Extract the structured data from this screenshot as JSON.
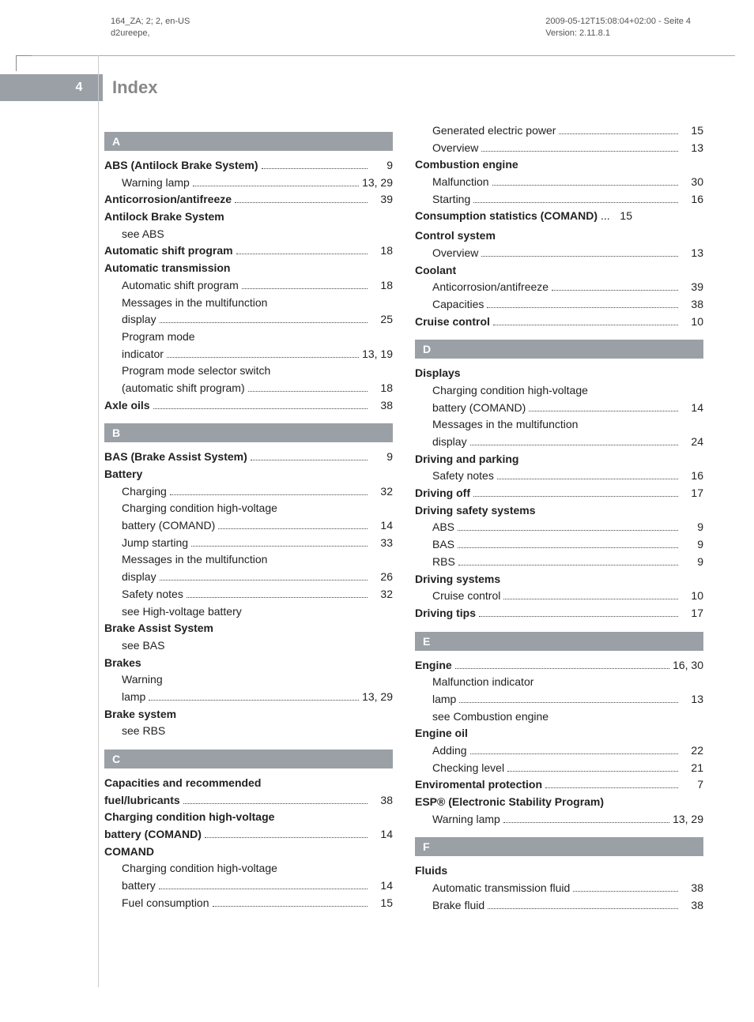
{
  "meta": {
    "topLeft1": "164_ZA; 2; 2, en-US",
    "topLeft2": "d2ureepe,",
    "topRight1": "2009-05-12T15:08:04+02:00 - Seite 4",
    "topRight2": "Version: 2.11.8.1",
    "pageNumber": "4",
    "pageTitle": "Index"
  },
  "styling": {
    "sectionHeaderBg": "#9aa0a6",
    "sectionHeaderColor": "#ffffff",
    "textColor": "#222222",
    "metaColor": "#555555",
    "fontSize": 14,
    "boldWeight": 700
  },
  "left": [
    {
      "type": "section",
      "letter": "A"
    },
    {
      "label": "ABS (Antilock Brake System)",
      "pages": "9",
      "bold": true
    },
    {
      "label": "Warning lamp",
      "pages": "13, 29",
      "sub": true
    },
    {
      "label": "Anticorrosion/antifreeze",
      "pages": "39",
      "bold": true
    },
    {
      "label": "Antilock Brake System",
      "bold": true,
      "headerOnly": true
    },
    {
      "label": "see ABS",
      "sub": true,
      "headerOnly": true
    },
    {
      "label": "Automatic shift program",
      "pages": "18",
      "bold": true
    },
    {
      "label": "Automatic transmission",
      "bold": true,
      "headerOnly": true
    },
    {
      "label": "Automatic shift program",
      "pages": "18",
      "sub": true
    },
    {
      "label": "Messages in the multifunction",
      "sub": true,
      "headerOnly": true
    },
    {
      "label": "display",
      "pages": "25",
      "sub": true
    },
    {
      "label": "Program mode",
      "sub": true,
      "headerOnly": true
    },
    {
      "label": "indicator",
      "pages": "13, 19",
      "sub": true
    },
    {
      "label": "Program mode selector switch",
      "sub": true,
      "headerOnly": true
    },
    {
      "label": "(automatic shift program)",
      "pages": "18",
      "sub": true
    },
    {
      "label": "Axle oils",
      "pages": "38",
      "bold": true
    },
    {
      "type": "section",
      "letter": "B"
    },
    {
      "label": "BAS (Brake Assist System)",
      "pages": "9",
      "bold": true
    },
    {
      "label": "Battery",
      "bold": true,
      "headerOnly": true
    },
    {
      "label": "Charging",
      "pages": "32",
      "sub": true
    },
    {
      "label": "Charging condition high-voltage",
      "sub": true,
      "headerOnly": true
    },
    {
      "label": "battery (COMAND)",
      "pages": "14",
      "sub": true
    },
    {
      "label": "Jump starting",
      "pages": "33",
      "sub": true
    },
    {
      "label": "Messages in the multifunction",
      "sub": true,
      "headerOnly": true
    },
    {
      "label": "display",
      "pages": "26",
      "sub": true
    },
    {
      "label": "Safety notes",
      "pages": "32",
      "sub": true
    },
    {
      "label": "see High-voltage battery",
      "sub": true,
      "headerOnly": true
    },
    {
      "label": "Brake Assist System",
      "bold": true,
      "headerOnly": true
    },
    {
      "label": "see BAS",
      "sub": true,
      "headerOnly": true
    },
    {
      "label": "Brakes",
      "bold": true,
      "headerOnly": true
    },
    {
      "label": "Warning",
      "sub": true,
      "headerOnly": true
    },
    {
      "label": "lamp",
      "pages": "13, 29",
      "sub": true
    },
    {
      "label": "Brake system",
      "bold": true,
      "headerOnly": true
    },
    {
      "label": "see RBS",
      "sub": true,
      "headerOnly": true
    },
    {
      "type": "section",
      "letter": "C"
    },
    {
      "label": "Capacities and recommended",
      "bold": true,
      "headerOnly": true
    },
    {
      "label": "fuel/lubricants",
      "pages": "38",
      "bold": true
    },
    {
      "label": "Charging condition high-voltage",
      "bold": true,
      "headerOnly": true
    },
    {
      "label": "battery (COMAND)",
      "pages": "14",
      "bold": true
    },
    {
      "label": "COMAND",
      "bold": true,
      "headerOnly": true
    },
    {
      "label": "Charging condition high-voltage",
      "sub": true,
      "headerOnly": true
    },
    {
      "label": "battery",
      "pages": "14",
      "sub": true
    },
    {
      "label": "Fuel consumption",
      "pages": "15",
      "sub": true
    }
  ],
  "right": [
    {
      "label": "Generated electric power",
      "pages": "15",
      "sub": true
    },
    {
      "label": "Overview",
      "pages": "13",
      "sub": true
    },
    {
      "label": "Combustion engine",
      "bold": true,
      "headerOnly": true
    },
    {
      "label": "Malfunction",
      "pages": "30",
      "sub": true
    },
    {
      "label": "Starting",
      "pages": "16",
      "sub": true
    },
    {
      "label": "Consumption statistics (COMAND)",
      "pages": "15",
      "bold": true,
      "ellipsis": "..."
    },
    {
      "label": "Control system",
      "bold": true,
      "headerOnly": true
    },
    {
      "label": "Overview",
      "pages": "13",
      "sub": true
    },
    {
      "label": "Coolant",
      "bold": true,
      "headerOnly": true
    },
    {
      "label": "Anticorrosion/antifreeze",
      "pages": "39",
      "sub": true
    },
    {
      "label": "Capacities",
      "pages": "38",
      "sub": true
    },
    {
      "label": "Cruise control",
      "pages": "10",
      "bold": true
    },
    {
      "type": "section",
      "letter": "D"
    },
    {
      "label": "Displays",
      "bold": true,
      "headerOnly": true
    },
    {
      "label": "Charging condition high-voltage",
      "sub": true,
      "headerOnly": true
    },
    {
      "label": "battery (COMAND)",
      "pages": "14",
      "sub": true
    },
    {
      "label": "Messages in the multifunction",
      "sub": true,
      "headerOnly": true
    },
    {
      "label": "display",
      "pages": "24",
      "sub": true
    },
    {
      "label": "Driving and parking",
      "bold": true,
      "headerOnly": true
    },
    {
      "label": "Safety notes",
      "pages": "16",
      "sub": true
    },
    {
      "label": "Driving off",
      "pages": "17",
      "bold": true
    },
    {
      "label": "Driving safety systems",
      "bold": true,
      "headerOnly": true
    },
    {
      "label": "ABS",
      "pages": "9",
      "sub": true
    },
    {
      "label": "BAS",
      "pages": "9",
      "sub": true
    },
    {
      "label": "RBS",
      "pages": "9",
      "sub": true
    },
    {
      "label": "Driving systems",
      "bold": true,
      "headerOnly": true
    },
    {
      "label": "Cruise control",
      "pages": "10",
      "sub": true
    },
    {
      "label": "Driving tips",
      "pages": "17",
      "bold": true
    },
    {
      "type": "section",
      "letter": "E"
    },
    {
      "label": "Engine",
      "pages": "16, 30",
      "bold": true
    },
    {
      "label": "Malfunction indicator",
      "sub": true,
      "headerOnly": true
    },
    {
      "label": "lamp",
      "pages": "13",
      "sub": true
    },
    {
      "label": "see Combustion engine",
      "sub": true,
      "headerOnly": true
    },
    {
      "label": "Engine oil",
      "bold": true,
      "headerOnly": true
    },
    {
      "label": "Adding",
      "pages": "22",
      "sub": true
    },
    {
      "label": "Checking level",
      "pages": "21",
      "sub": true
    },
    {
      "label": "Enviromental protection",
      "pages": "7",
      "bold": true
    },
    {
      "label": "ESP® (Electronic Stability Program)",
      "bold": true,
      "headerOnly": true
    },
    {
      "label": "Warning lamp",
      "pages": "13, 29",
      "sub": true
    },
    {
      "type": "section",
      "letter": "F"
    },
    {
      "label": "Fluids",
      "bold": true,
      "headerOnly": true
    },
    {
      "label": "Automatic transmission fluid",
      "pages": "38",
      "sub": true
    },
    {
      "label": "Brake fluid",
      "pages": "38",
      "sub": true
    }
  ]
}
